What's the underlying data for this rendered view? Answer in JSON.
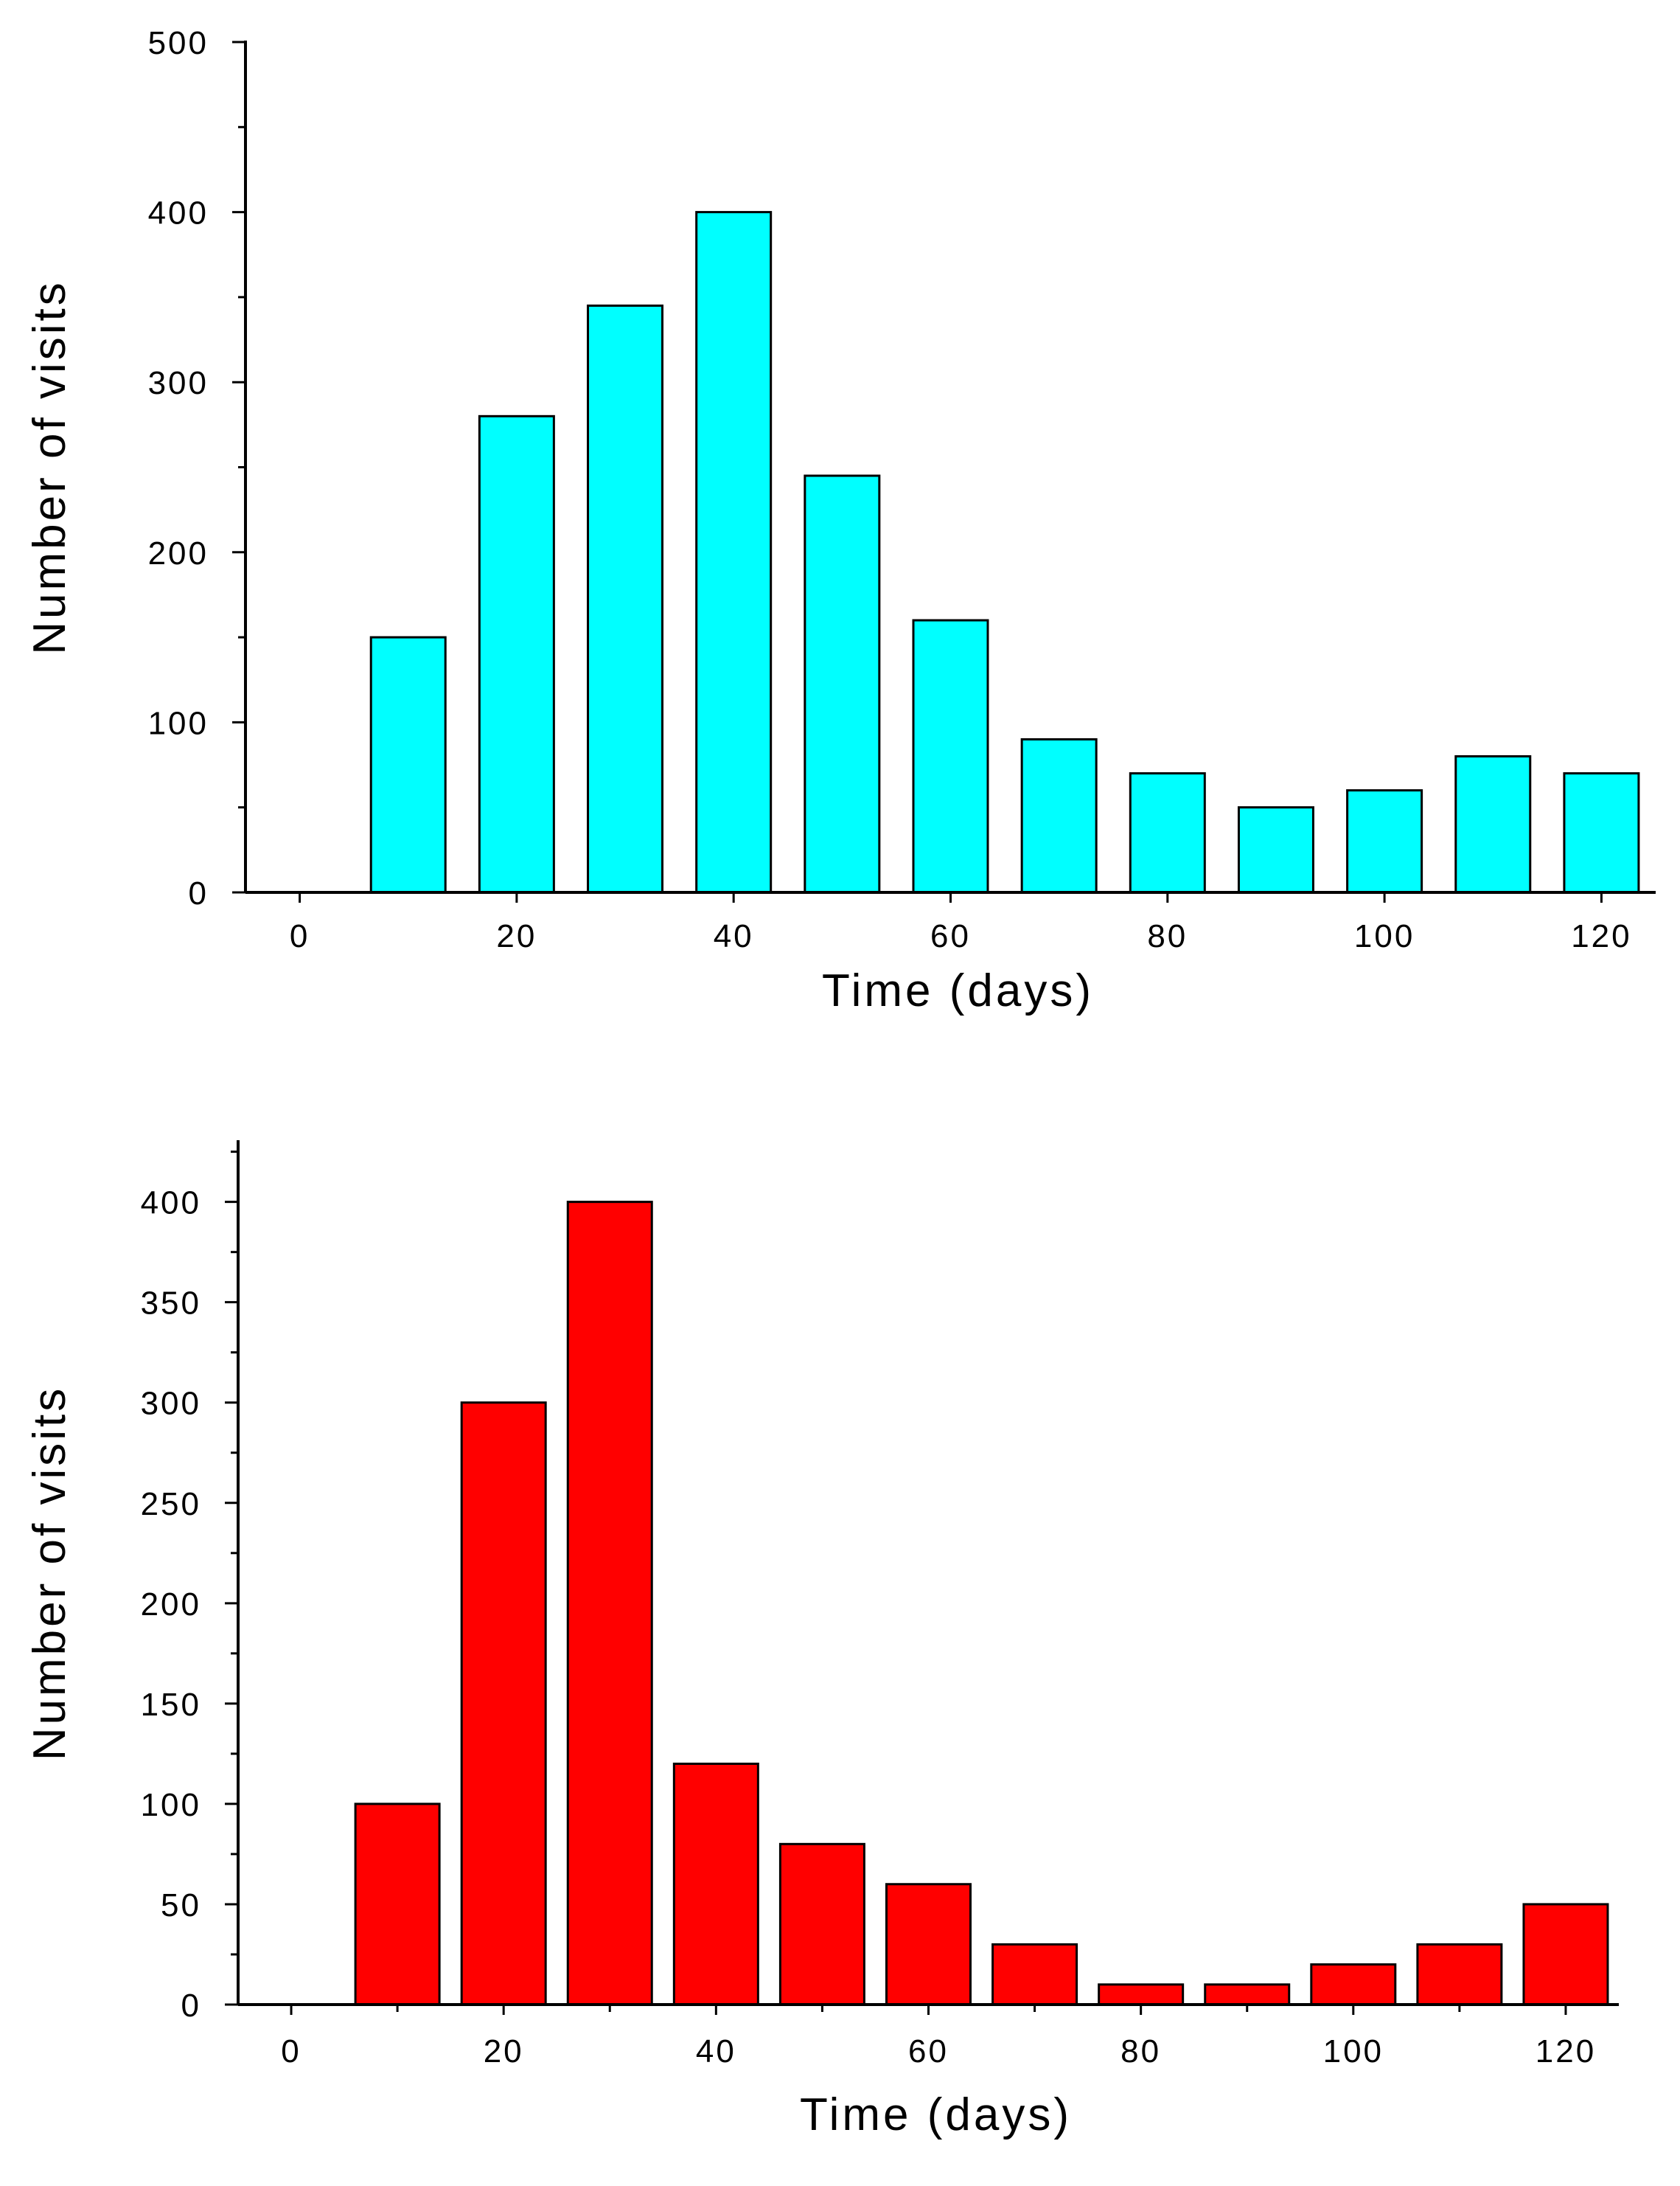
{
  "chart_data": [
    {
      "type": "bar",
      "title": "",
      "xlabel": "Time (days)",
      "ylabel": "Number of visits",
      "x": [
        0,
        10,
        20,
        30,
        40,
        50,
        60,
        70,
        80,
        90,
        100,
        110,
        120
      ],
      "values": [
        0,
        150,
        280,
        345,
        400,
        245,
        160,
        90,
        70,
        50,
        60,
        80,
        70
      ],
      "xlim": [
        -5,
        125
      ],
      "ylim": [
        0,
        500
      ],
      "xticks": [
        0,
        20,
        40,
        60,
        80,
        100,
        120
      ],
      "yticks": [
        0,
        100,
        200,
        300,
        400,
        500
      ],
      "color": "#00ffff"
    },
    {
      "type": "bar",
      "title": "",
      "xlabel": "Time (days)",
      "ylabel": "Number of visits",
      "x": [
        0,
        10,
        20,
        30,
        40,
        50,
        60,
        70,
        80,
        90,
        100,
        110,
        120
      ],
      "values": [
        0,
        100,
        300,
        400,
        120,
        80,
        60,
        30,
        10,
        10,
        20,
        30,
        50
      ],
      "xlim": [
        -5,
        125
      ],
      "ylim": [
        0,
        430
      ],
      "xticks": [
        0,
        20,
        40,
        60,
        80,
        100,
        120
      ],
      "yticks": [
        0,
        50,
        100,
        150,
        200,
        250,
        300,
        350,
        400
      ],
      "color": "#ff0000"
    }
  ]
}
